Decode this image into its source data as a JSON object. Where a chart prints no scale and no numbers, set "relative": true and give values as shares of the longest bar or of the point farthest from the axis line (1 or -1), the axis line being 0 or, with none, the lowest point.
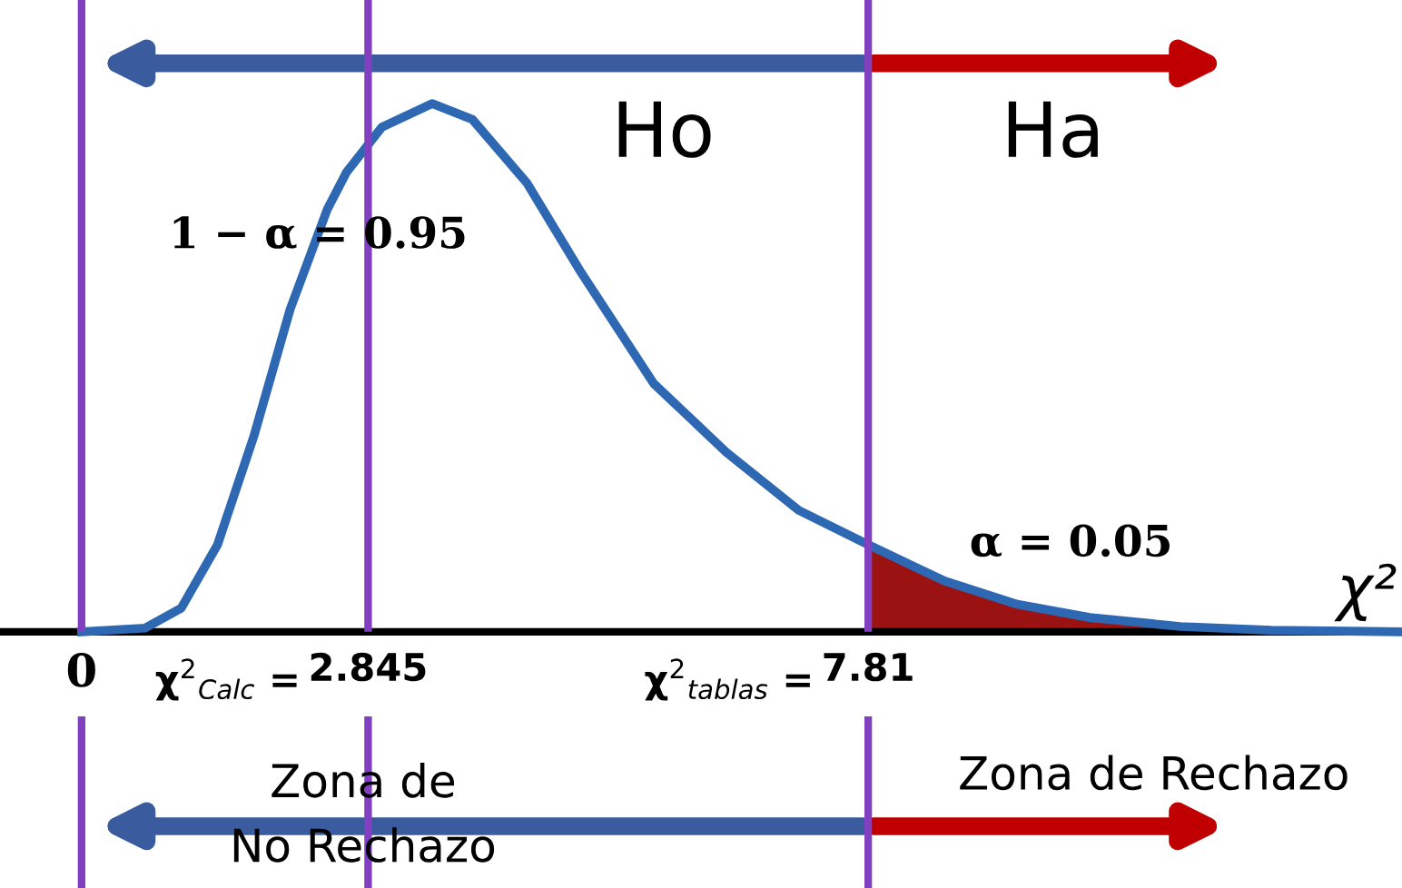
{
  "chart_data": {
    "type": "line",
    "relative": true,
    "xlabel": "χ²",
    "xlim": [
      -0.81,
      13.11
    ],
    "xticks": [
      0,
      2.845,
      7.81
    ],
    "series": [
      {
        "color": "#2e68b2",
        "x": [
          0,
          0.63,
          0.99,
          1.35,
          1.71,
          2.07,
          2.44,
          2.63,
          2.98,
          3.48,
          3.88,
          4.42,
          4.96,
          5.68,
          6.4,
          7.12,
          7.81,
          8.57,
          9.29,
          10.01,
          10.91,
          11.81,
          13.08
        ],
        "values": [
          0,
          0.007,
          0.045,
          0.165,
          0.37,
          0.61,
          0.8,
          0.87,
          0.955,
          1.0,
          0.97,
          0.85,
          0.68,
          0.47,
          0.34,
          0.23,
          0.165,
          0.096,
          0.052,
          0.027,
          0.01,
          0.003,
          0
        ]
      },
      {
        "type": "area",
        "color": "#9b1212",
        "x": [
          7.81,
          8.57,
          9.29,
          10.01,
          10.91,
          11.81,
          13.08
        ],
        "values": [
          0.165,
          0.096,
          0.052,
          0.027,
          0.01,
          0.003,
          0
        ]
      }
    ],
    "ref_lines": [
      {
        "axis": "x",
        "value": 0,
        "color": "#8040c0"
      },
      {
        "axis": "x",
        "value": 2.845,
        "color": "#8040c0"
      },
      {
        "axis": "x",
        "value": 7.81,
        "color": "#8040c0"
      }
    ],
    "annotations": [
      "Ho",
      "Ha",
      "1 − α = 0.95",
      "α = 0.05",
      "Zona de\nNo Rechazo",
      "Zona de Rechazo",
      "χ$^{2}$$_{Calc}$ =",
      "χ$^{2}$$_{tablas}$ ="
    ],
    "legend": false,
    "marker": "none",
    "line_style": "solid"
  }
}
